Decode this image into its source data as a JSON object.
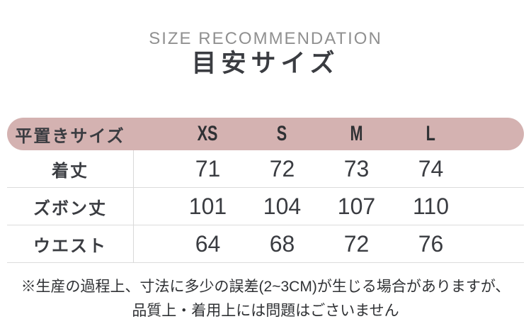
{
  "header": {
    "subtitle": "SIZE RECOMMENDATION",
    "title": "目安サイズ"
  },
  "table": {
    "corner_label": "平置きサイズ",
    "size_headers": [
      "XS",
      "S",
      "M",
      "L"
    ],
    "rows": [
      {
        "label": "着丈",
        "values": [
          "71",
          "72",
          "73",
          "74"
        ]
      },
      {
        "label": "ズボン丈",
        "values": [
          "101",
          "104",
          "107",
          "110"
        ]
      },
      {
        "label": "ウエスト",
        "values": [
          "64",
          "68",
          "72",
          "76"
        ]
      }
    ]
  },
  "footnote": {
    "line1": "※生産の過程上、寸法に多少の誤差(2~3CM)が生じる場合がありますが、",
    "line2": "品質上・着用上には問題はごさいません"
  },
  "colors": {
    "header_pill_pink": "#d4b2b1",
    "dark_text": "#3a3c41",
    "subtitle_gray": "#909090",
    "divider_gray": "#d9d9d9"
  }
}
